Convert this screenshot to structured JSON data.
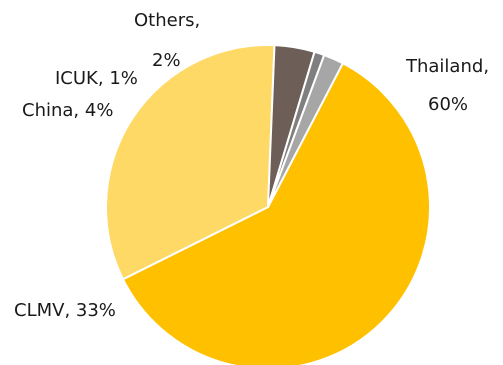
{
  "chart_data": {
    "type": "pie",
    "title": "",
    "slices": [
      {
        "label": "Thailand",
        "value": 60,
        "display": "60%",
        "color": "#FFC000"
      },
      {
        "label": "CLMV",
        "value": 33,
        "display": "33%",
        "color": "#FFD966"
      },
      {
        "label": "China",
        "value": 4,
        "display": "4%",
        "color": "#6E5E58"
      },
      {
        "label": "ICUK",
        "value": 1,
        "display": "1%",
        "color": "#7F7F7F"
      },
      {
        "label": "Others",
        "value": 2,
        "display": "2%",
        "color": "#A6A6A6"
      }
    ],
    "legend": "none"
  }
}
